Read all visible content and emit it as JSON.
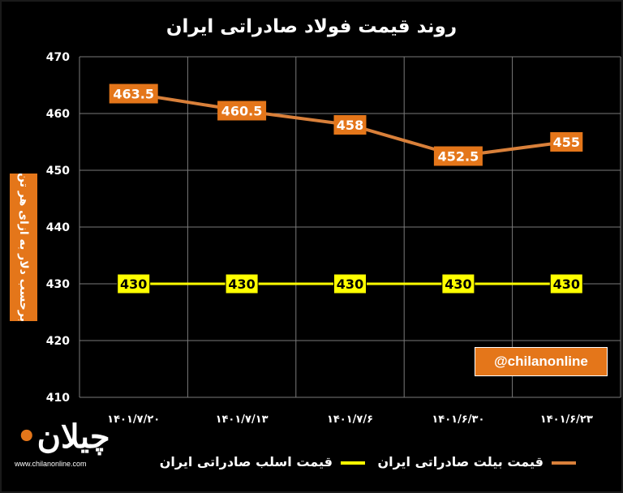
{
  "title": "روند قیمت فولاد صادراتی ایران",
  "y_axis_label": "برحسب دلار به ازای هر تن",
  "watermark_handle": "@chilanonline",
  "logo": {
    "mark": "چیلان",
    "url": "www.chilanonline.com"
  },
  "colors": {
    "background": "#000000",
    "billet": "#D9803A",
    "slab": "#FFFF00",
    "accent": "#E4761A"
  },
  "chart_data": {
    "type": "line",
    "categories": [
      "۱۴۰۱/۶/۲۳",
      "۱۴۰۱/۶/۳۰",
      "۱۴۰۱/۷/۶",
      "۱۴۰۱/۷/۱۳",
      "۱۴۰۱/۷/۲۰"
    ],
    "category_order": "right-to-left",
    "ylim": [
      410,
      470
    ],
    "yticks": [
      410,
      420,
      430,
      440,
      450,
      460,
      470
    ],
    "ylabel": "برحسب دلار به ازای هر تن",
    "grid": true,
    "legend_position": "bottom",
    "series": [
      {
        "name": "قیمت بیلت صادراتی ایران",
        "color": "#D9803A",
        "values": [
          455,
          452.5,
          458,
          460.5,
          463.5
        ],
        "labels": [
          "455",
          "452.5",
          "458",
          "460.5",
          "463.5"
        ]
      },
      {
        "name": "قیمت اسلب صادراتی ایران",
        "color": "#FFFF00",
        "values": [
          430,
          430,
          430,
          430,
          430
        ],
        "labels": [
          "430",
          "430",
          "430",
          "430",
          "430"
        ]
      }
    ]
  }
}
